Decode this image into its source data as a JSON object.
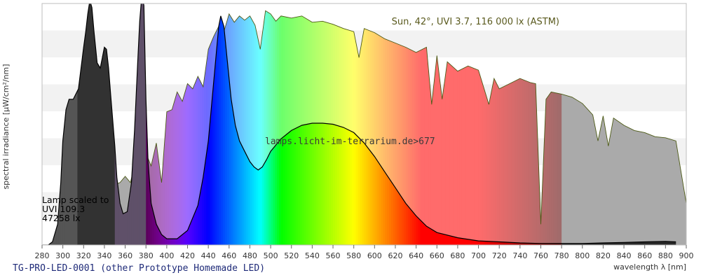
{
  "caption": "TG-PRO-LED-0001 (other Prototype Homemade LED)",
  "chart_data": {
    "type": "area",
    "xlabel": "wavelength λ [nm]",
    "ylabel": "spectral irradiance [µW/cm²/nm]",
    "xlim": [
      280,
      900
    ],
    "x_ticks": [
      280,
      300,
      320,
      340,
      360,
      380,
      400,
      420,
      440,
      460,
      480,
      500,
      520,
      540,
      560,
      580,
      600,
      620,
      640,
      660,
      680,
      700,
      720,
      740,
      760,
      780,
      800,
      820,
      840,
      860,
      880,
      900
    ],
    "grid": "horizontal bands",
    "annotations": {
      "sun_label": "Sun, 42°, UVI 3.7, 116 000 lx (ASTM)",
      "watermark": "lamps.licht-im-terrarium.de>677",
      "lamp_label": [
        "Lamp scaled to",
        "UVI 109.3",
        "47258 lx"
      ]
    },
    "series": [
      {
        "role": "sun",
        "x": [
          280,
          290,
          295,
          300,
          305,
          310,
          315,
          320,
          325,
          330,
          335,
          340,
          345,
          350,
          355,
          360,
          365,
          370,
          375,
          380,
          385,
          390,
          395,
          400,
          405,
          410,
          415,
          420,
          425,
          430,
          435,
          440,
          445,
          450,
          455,
          460,
          465,
          470,
          475,
          480,
          485,
          490,
          495,
          500,
          505,
          510,
          520,
          530,
          540,
          550,
          560,
          570,
          580,
          585,
          590,
          600,
          610,
          620,
          630,
          640,
          650,
          655,
          660,
          665,
          670,
          680,
          690,
          700,
          710,
          715,
          720,
          730,
          740,
          750,
          755,
          760,
          765,
          770,
          780,
          790,
          800,
          810,
          815,
          820,
          825,
          830,
          840,
          850,
          860,
          870,
          880,
          890,
          895,
          900
        ],
        "y": [
          0,
          0,
          0.8,
          2.5,
          8,
          15,
          23,
          29,
          35,
          41,
          46,
          50,
          52,
          58,
          60,
          66,
          60,
          80,
          72,
          88,
          76,
          98,
          60,
          128,
          130,
          147,
          138,
          155,
          150,
          162,
          152,
          188,
          200,
          210,
          205,
          222,
          214,
          220,
          216,
          220,
          211,
          188,
          225,
          222,
          215,
          220,
          218,
          220,
          214,
          215,
          212,
          208,
          205,
          180,
          208,
          204,
          198,
          194,
          190,
          185,
          190,
          135,
          182,
          140,
          176,
          167,
          172,
          168,
          135,
          160,
          150,
          155,
          160,
          156,
          155,
          20,
          140,
          147,
          145,
          142,
          136,
          125,
          100,
          124,
          95,
          122,
          115,
          110,
          108,
          104,
          103,
          100,
          70,
          40
        ]
      },
      {
        "role": "lamp",
        "x": [
          280,
          286,
          290,
          295,
          298,
          300,
          303,
          306,
          310,
          315,
          320,
          322,
          324,
          326,
          328,
          330,
          333,
          336,
          338,
          340,
          342,
          344,
          346,
          348,
          350,
          352,
          355,
          358,
          362,
          366,
          369,
          372,
          374,
          376,
          378,
          380,
          382,
          385,
          390,
          395,
          400,
          410,
          420,
          430,
          435,
          440,
          445,
          450,
          452,
          455,
          458,
          462,
          466,
          470,
          475,
          480,
          484,
          488,
          492,
          496,
          500,
          510,
          520,
          530,
          540,
          550,
          560,
          570,
          580,
          590,
          600,
          610,
          620,
          630,
          640,
          650,
          660,
          680,
          700,
          720,
          740,
          760,
          780,
          800,
          820,
          840,
          860,
          880,
          890
        ],
        "y": [
          0,
          0,
          3,
          20,
          60,
          100,
          130,
          140,
          140,
          150,
          190,
          205,
          222,
          235,
          228,
          205,
          175,
          170,
          180,
          190,
          188,
          170,
          145,
          120,
          95,
          65,
          40,
          30,
          32,
          60,
          110,
          175,
          215,
          240,
          230,
          140,
          80,
          40,
          20,
          10,
          6,
          6,
          14,
          38,
          65,
          100,
          155,
          210,
          220,
          210,
          180,
          140,
          115,
          100,
          90,
          80,
          75,
          72,
          75,
          82,
          90,
          102,
          110,
          115,
          117,
          117,
          116,
          113,
          108,
          98,
          85,
          70,
          55,
          40,
          28,
          18,
          12,
          7,
          4,
          3,
          2,
          1.5,
          1.5,
          1.5,
          2,
          2.5,
          3,
          3.5,
          3
        ]
      }
    ]
  }
}
